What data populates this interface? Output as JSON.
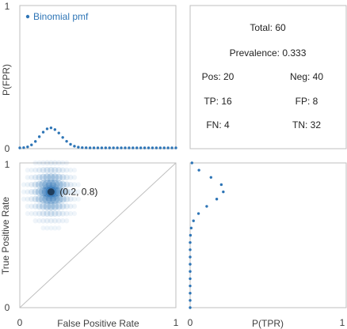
{
  "colors": {
    "series": "#2e75b6",
    "axis": "#bfbfbf",
    "text": "#404040",
    "diag": "#bfbfbf"
  },
  "chart_data": [
    {
      "id": "fpr-pmf",
      "type": "scatter",
      "ylabel": "P(FPR)",
      "ytick_labels": [
        "0",
        "1"
      ],
      "legend": {
        "label": "Binomial pmf",
        "position": "top-left"
      },
      "xlim": [
        0,
        1
      ],
      "ylim": [
        0,
        1
      ],
      "x": [
        0,
        0.025,
        0.05,
        0.075,
        0.1,
        0.125,
        0.15,
        0.175,
        0.2,
        0.225,
        0.25,
        0.275,
        0.3,
        0.325,
        0.35,
        0.375,
        0.4,
        0.425,
        0.45,
        0.475,
        0.5,
        0.525,
        0.55,
        0.575,
        0.6,
        0.625,
        0.65,
        0.675,
        0.7,
        0.725,
        0.75,
        0.775,
        0.8,
        0.825,
        0.85,
        0.875,
        0.9,
        0.925,
        0.95,
        0.975,
        1
      ],
      "values": [
        0.0,
        0.002,
        0.007,
        0.021,
        0.045,
        0.078,
        0.11,
        0.133,
        0.14,
        0.128,
        0.104,
        0.073,
        0.046,
        0.025,
        0.012,
        0.005,
        0.002,
        0.001,
        0,
        0,
        0,
        0,
        0,
        0,
        0,
        0,
        0,
        0,
        0,
        0,
        0,
        0,
        0,
        0,
        0,
        0,
        0,
        0,
        0,
        0,
        0
      ]
    },
    {
      "id": "stats",
      "type": "table",
      "total": "Total: 60",
      "prevalence": "Prevalence: 0.333",
      "pos": "Pos: 20",
      "neg": "Neg: 40",
      "tp": "TP: 16",
      "fp": "FP: 8",
      "fn": "FN: 4",
      "tn": "TN: 32"
    },
    {
      "id": "roc",
      "type": "heatmap",
      "xlabel": "False Positive Rate",
      "ylabel": "True Positive Rate",
      "xtick_labels": [
        "0",
        "1"
      ],
      "ytick_labels": [
        "0",
        "1"
      ],
      "xlim": [
        0,
        1
      ],
      "ylim": [
        0,
        1
      ],
      "point": {
        "x": 0.2,
        "y": 0.8,
        "label": "(0.2, 0.8)"
      },
      "fpr_range": [
        0.0,
        0.55
      ],
      "tpr_range": [
        0.5,
        1.0
      ],
      "diagonal": true
    },
    {
      "id": "tpr-pmf",
      "type": "scatter",
      "xlabel": "P(TPR)",
      "xtick_labels": [
        "0",
        "1"
      ],
      "xlim": [
        0,
        1
      ],
      "ylim": [
        0,
        1
      ],
      "y": [
        1.0,
        0.95,
        0.9,
        0.85,
        0.8,
        0.75,
        0.7,
        0.65,
        0.6,
        0.55,
        0.5,
        0.45,
        0.4,
        0.35,
        0.3,
        0.25,
        0.2,
        0.15,
        0.1,
        0.05,
        0.0
      ],
      "values": [
        0.012,
        0.058,
        0.137,
        0.205,
        0.218,
        0.175,
        0.109,
        0.055,
        0.022,
        0.007,
        0.002,
        0,
        0,
        0,
        0,
        0,
        0,
        0,
        0,
        0,
        0
      ]
    }
  ]
}
